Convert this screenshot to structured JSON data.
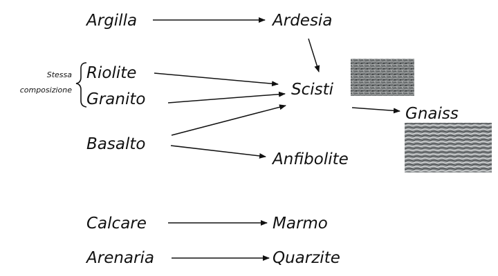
{
  "colors": {
    "ink": "#111111",
    "background": "#ffffff"
  },
  "rocks": {
    "argilla": "Argilla",
    "ardesia": "Ardesia",
    "riolite": "Riolite",
    "granito": "Granito",
    "scisti": "Scisti",
    "gnaiss": "Gnaiss",
    "basalto": "Basalto",
    "anfibolite": "Anfibolite",
    "calcare": "Calcare",
    "marmo": "Marmo",
    "arenaria": "Arenaria",
    "quarzite": "Quarzite"
  },
  "note": {
    "line1": "Stessa",
    "line2": "composizione"
  },
  "images": {
    "scisti": "schist-rock-photo",
    "gnaiss": "gneiss-rock-photo"
  }
}
